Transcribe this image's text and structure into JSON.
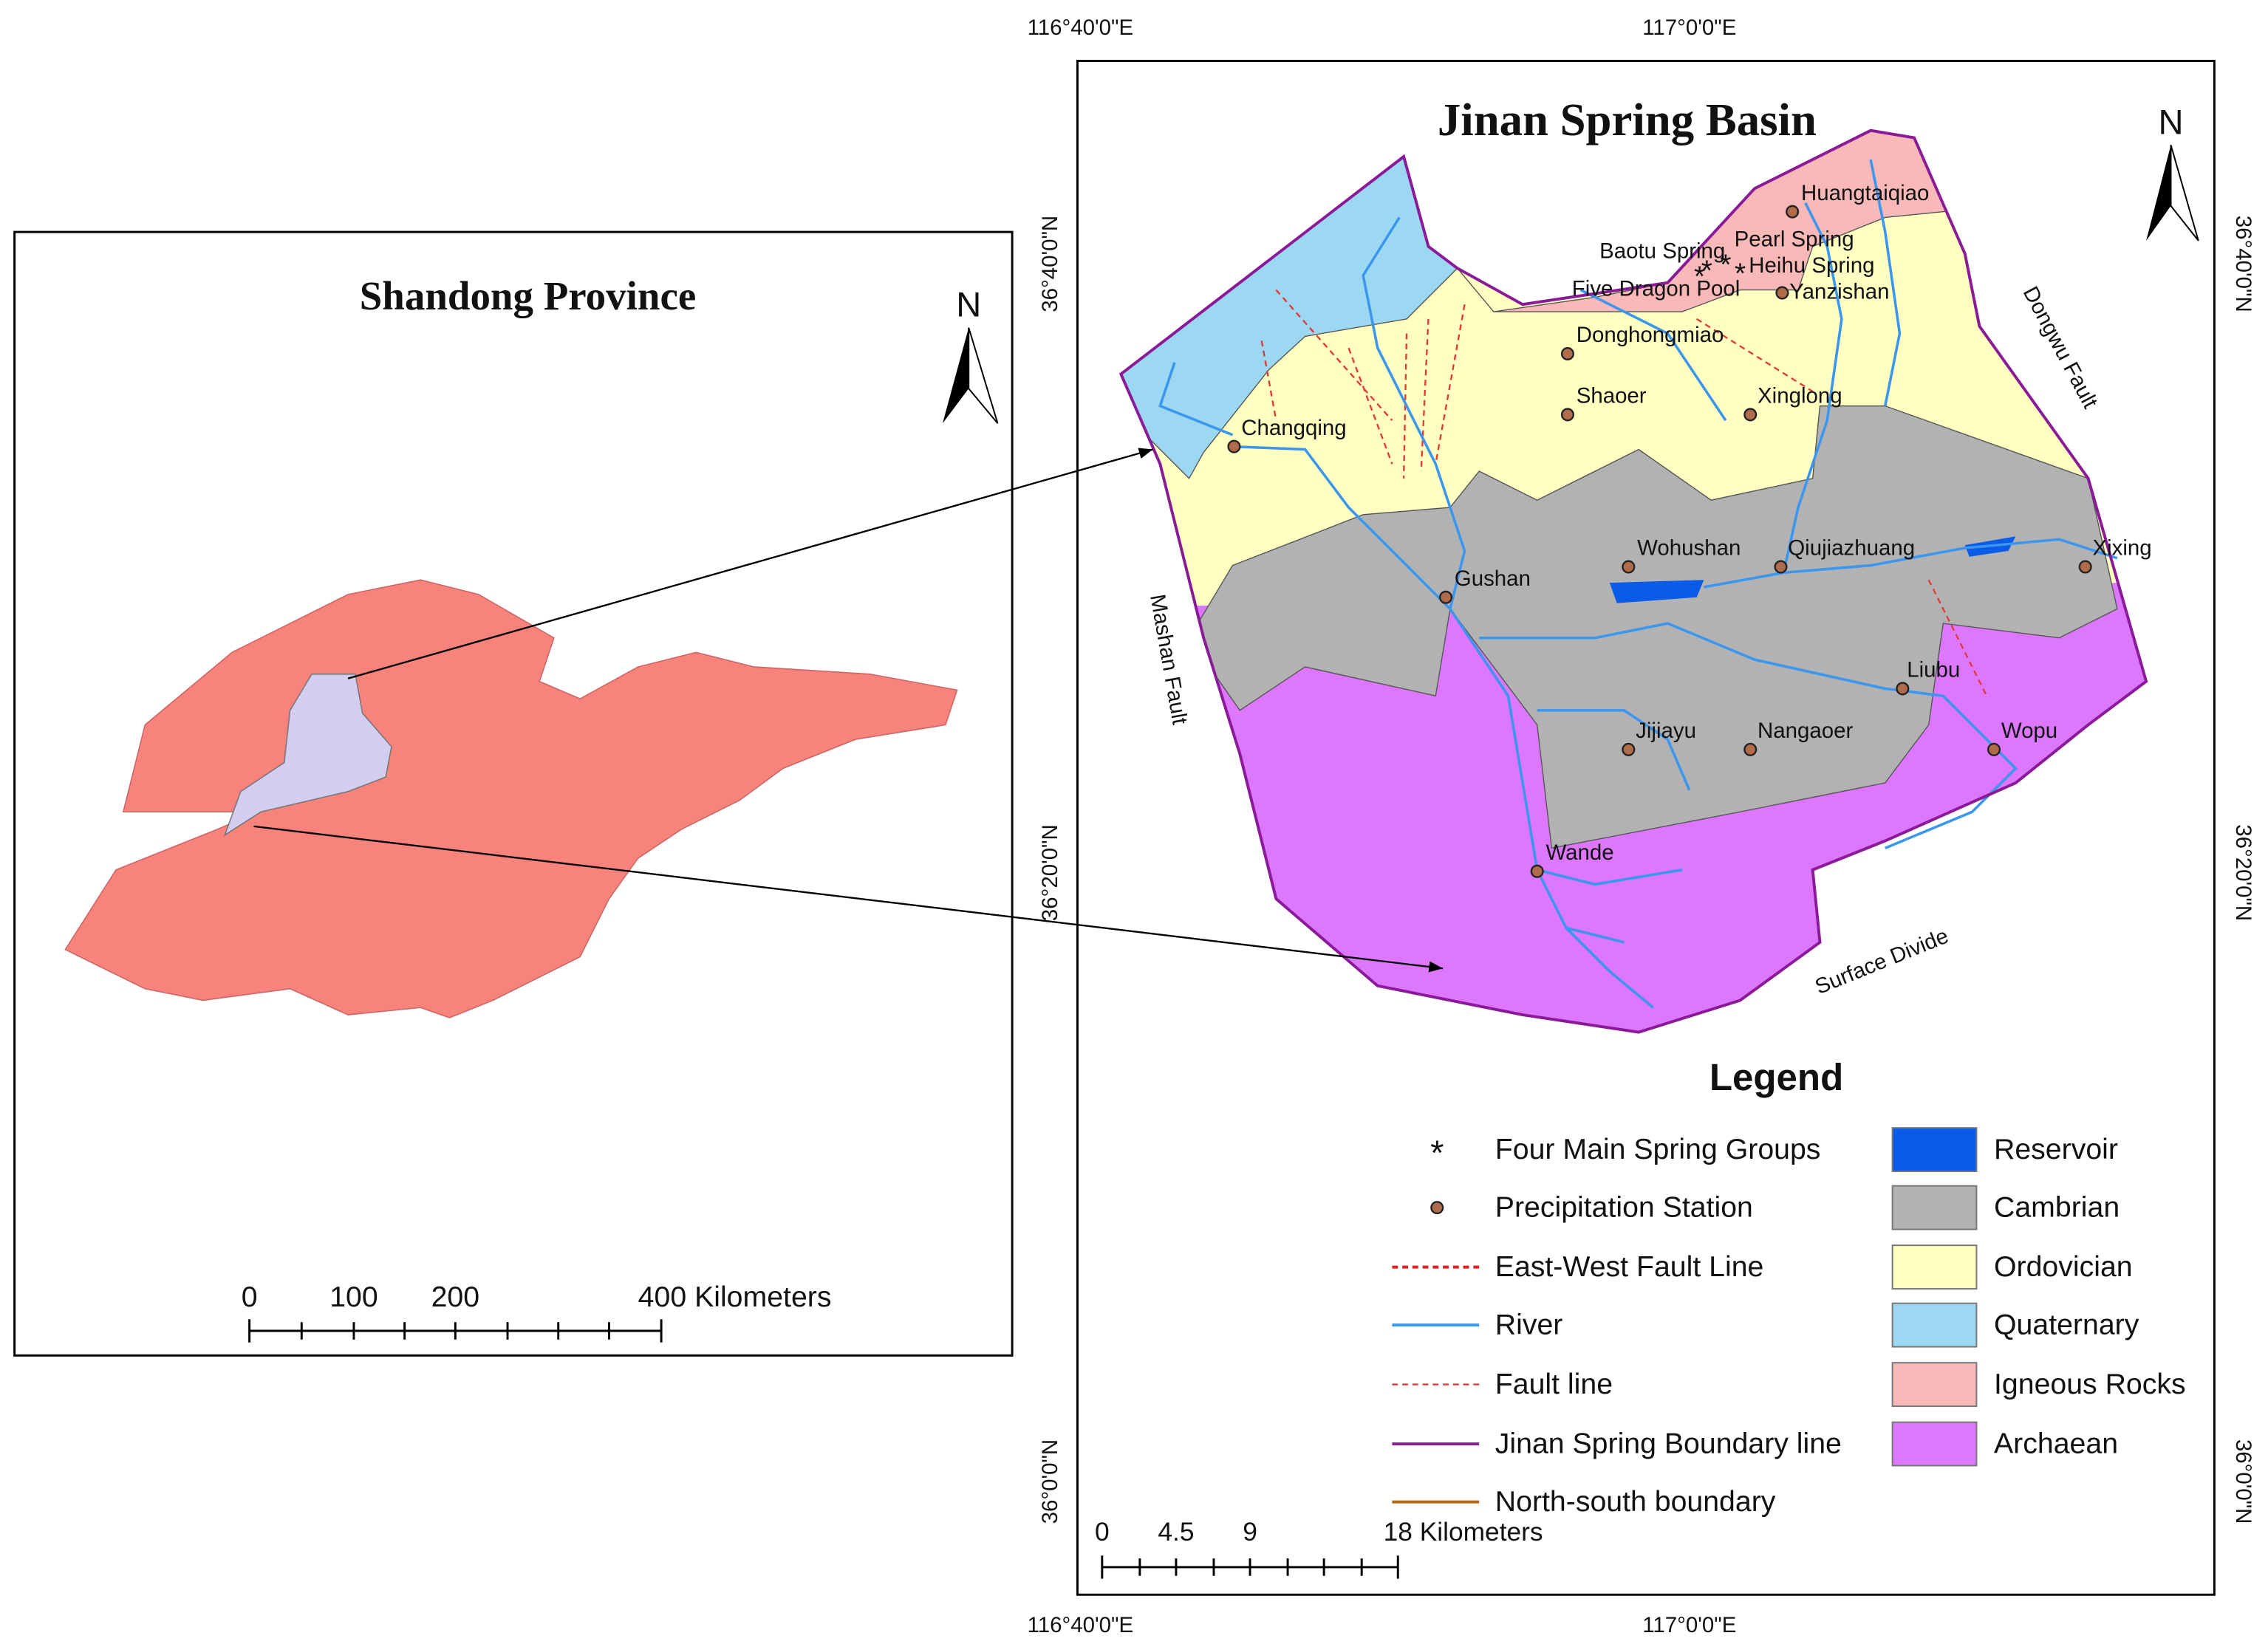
{
  "left_map": {
    "title": "Shandong Province",
    "north": "N",
    "scale_labels": [
      "0",
      "100",
      "200",
      "400 Kilometers"
    ]
  },
  "right_map": {
    "title": "Jinan Spring Basin",
    "north": "N",
    "top_coords": [
      "116°40'0\"E",
      "117°0'0\"E"
    ],
    "bottom_coords": [
      "116°40'0\"E",
      "117°0'0\"E"
    ],
    "left_coords": [
      "36°40'0\"N",
      "36°20'0\"N",
      "36°0'0\"N"
    ],
    "right_coords": [
      "36°40'0\"N",
      "36°20'0\"N",
      "36°0'0\"N"
    ],
    "places": [
      "Huangtaiqiao",
      "Baotu Spring",
      "Pearl Spring",
      "Heihu Spring",
      "Five Dragon Pool",
      "Yanzishan",
      "Donghongmiao",
      "Shaoer",
      "Xinglong",
      "Changqing",
      "Wohushan",
      "Qiujiazhuang",
      "Xixing",
      "Gushan",
      "Liubu",
      "Jijiayu",
      "Nangaoer",
      "Wopu",
      "Wande"
    ],
    "features": [
      "Dongwu Fault",
      "Mashan Fault",
      "Surface Divide"
    ],
    "legend": {
      "title": "Legend",
      "lines": [
        "Four Main Spring Groups",
        "Precipitation Station",
        "East-West Fault Line",
        "River",
        "Fault line",
        "Jinan Spring Boundary line",
        "North-south boundary"
      ],
      "areas": [
        "Reservoir",
        "Cambrian",
        "Ordovician",
        "Quaternary",
        "Igneous Rocks",
        "Archaean"
      ]
    },
    "scale_labels": [
      "0",
      "4.5",
      "9",
      "18 Kilometers"
    ]
  }
}
